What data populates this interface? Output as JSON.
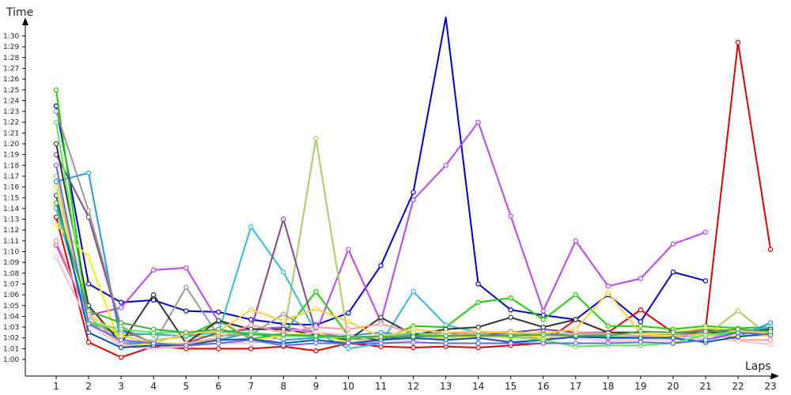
{
  "chart_data": {
    "type": "line",
    "ylabel": "Time",
    "xlabel": "Laps",
    "x": [
      1,
      2,
      3,
      4,
      5,
      6,
      7,
      8,
      9,
      10,
      11,
      12,
      13,
      14,
      15,
      16,
      17,
      18,
      19,
      20,
      21,
      22,
      23
    ],
    "x_tick_labels": [
      "1",
      "2",
      "3",
      "4",
      "5",
      "6",
      "7",
      "8",
      "9",
      "10",
      "11",
      "12",
      "13",
      "14",
      "15",
      "16",
      "17",
      "18",
      "19",
      "20",
      "21",
      "22",
      "23"
    ],
    "y_unit": "seconds",
    "ylim": [
      58,
      92
    ],
    "y_ticks": [
      60,
      61,
      62,
      63,
      64,
      65,
      66,
      67,
      68,
      69,
      70,
      71,
      72,
      73,
      74,
      75,
      76,
      77,
      78,
      79,
      80,
      81,
      82,
      83,
      84,
      85,
      86,
      87,
      88,
      89,
      90
    ],
    "y_tick_labels": [
      "1:00",
      "1:01",
      "1:02",
      "1:03",
      "1:04",
      "1:05",
      "1:06",
      "1:07",
      "1:08",
      "1:09",
      "1:10",
      "1:11",
      "1:12",
      "1:13",
      "1:14",
      "1:15",
      "1:16",
      "1:17",
      "1:18",
      "1:19",
      "1:20",
      "1:21",
      "1:22",
      "1:23",
      "1:24",
      "1:25",
      "1:26",
      "1:27",
      "1:28",
      "1:29",
      "1:30"
    ],
    "grid": false,
    "series": [
      {
        "color": "#0000cc",
        "values": [
          83.5,
          67,
          65.3,
          65.5,
          64.5,
          64.4,
          63.7,
          63.3,
          63.2,
          64.3,
          68.7,
          75.5,
          93,
          67,
          64.6,
          64.1,
          63.7,
          66,
          63.5,
          68.1,
          67.3,
          null,
          null
        ]
      },
      {
        "color": "#dd0000",
        "values": [
          73.2,
          61.6,
          60.2,
          61.2,
          61,
          61,
          61,
          61.2,
          60.8,
          61.5,
          61.2,
          61.1,
          61.2,
          61.1,
          61.3,
          61.5,
          63.7,
          62.5,
          64.6,
          62.5,
          62.8,
          89.4,
          70.2
        ]
      },
      {
        "color": "#bb44ee",
        "values": [
          70.6,
          64.1,
          64.8,
          68.3,
          68.5,
          63.5,
          62.8,
          63,
          62.5,
          70.2,
          63.5,
          74.8,
          78,
          82,
          73.3,
          64.5,
          71,
          66.8,
          67.5,
          70.7,
          71.8,
          null,
          null
        ]
      },
      {
        "color": "#22cc00",
        "values": [
          85,
          63.5,
          62.2,
          62.4,
          62.1,
          63.6,
          61.9,
          62.4,
          66.3,
          62.2,
          61.8,
          63.1,
          63,
          65.3,
          65.7,
          63.7,
          66,
          63.1,
          63.1,
          62.8,
          63.1,
          62.9,
          63
        ]
      },
      {
        "color": "#aacc66",
        "values": [
          77,
          63.5,
          61.5,
          61.8,
          62.1,
          62.2,
          62.5,
          62.1,
          80.5,
          61.9,
          61.8,
          62.2,
          62.2,
          62.4,
          62.3,
          62.2,
          62.1,
          62.1,
          62.1,
          62.2,
          62.2,
          64.5,
          62.1
        ]
      },
      {
        "color": "#2299dd",
        "values": [
          76.5,
          77.3,
          61.5,
          61.5,
          61.5,
          61.8,
          62.5,
          61.8,
          62,
          62.2,
          62.5,
          62.2,
          62.1,
          62.1,
          62.2,
          62.5,
          62.1,
          62.1,
          62.1,
          62.1,
          62.2,
          62.1,
          63.4
        ]
      },
      {
        "color": "#33bbdd",
        "values": [
          74,
          63.5,
          62.5,
          62.3,
          62.2,
          62.5,
          72.3,
          68.1,
          62.5,
          61,
          61.5,
          66.3,
          63.2,
          62.5,
          62.5,
          62.2,
          62.1,
          62.2,
          62.1,
          62.2,
          62.2,
          62.5,
          63
        ]
      },
      {
        "color": "#884488",
        "values": [
          79,
          73.2,
          62.8,
          61.5,
          61.5,
          62.5,
          62.8,
          73,
          62.5,
          62,
          61.8,
          62.3,
          62.5,
          62.2,
          62.5,
          62.8,
          62.5,
          62.5,
          62.5,
          62.5,
          62.8,
          62.5,
          62.3
        ]
      },
      {
        "color": "#999999",
        "values": [
          83,
          73.8,
          63.1,
          61.4,
          66.7,
          62.2,
          62.3,
          64.2,
          62.4,
          62,
          62.2,
          62.3,
          62.5,
          62.4,
          62.6,
          62.3,
          62.4,
          62.3,
          62.2,
          62.3,
          62.4,
          62.5,
          62.6
        ]
      },
      {
        "color": "#333333",
        "values": [
          80,
          65,
          61.5,
          66,
          61.5,
          63.6,
          62.8,
          62.8,
          62.3,
          61.8,
          63.9,
          62.3,
          62.8,
          63,
          63.9,
          63,
          63.7,
          62.5,
          62.5,
          62.5,
          62.5,
          62.5,
          62.8
        ]
      },
      {
        "color": "#eeee00",
        "values": [
          72.5,
          69.5,
          61.2,
          61.5,
          61.5,
          61.8,
          61.8,
          62.2,
          62.5,
          61.5,
          61.5,
          61.8,
          62.1,
          62.1,
          62,
          62.1,
          62.2,
          62.2,
          62.2,
          62.2,
          62.2,
          62.2,
          62.2
        ]
      },
      {
        "color": "#ff9999",
        "values": [
          71,
          64,
          61.5,
          61,
          61.5,
          62,
          63.2,
          62.5,
          63,
          62.8,
          63.3,
          62.5,
          62.2,
          62.5,
          62.5,
          61.8,
          62.5,
          62.4,
          62.2,
          62,
          62.5,
          61.8,
          61.8
        ]
      },
      {
        "color": "#ffbbdd",
        "values": [
          69.5,
          63.3,
          61.2,
          61,
          61.2,
          61.5,
          61.5,
          62,
          62.5,
          62.3,
          61.5,
          61.8,
          62,
          62,
          62.2,
          62.2,
          62,
          61.7,
          61.8,
          61.8,
          62,
          61.7,
          61.4
        ]
      },
      {
        "color": "#0055aa",
        "values": [
          75.2,
          62.5,
          61.1,
          61.3,
          61.3,
          61.8,
          61.9,
          61.5,
          61.8,
          61.5,
          61.8,
          62,
          61.8,
          62,
          61.6,
          61.8,
          62.1,
          62,
          62,
          62,
          61.6,
          62.1,
          62.4
        ]
      },
      {
        "color": "#55ee55",
        "values": [
          82,
          63.5,
          62.8,
          62.5,
          62.5,
          62.5,
          62.5,
          62.2,
          62.1,
          62,
          62.1,
          62.5,
          62.1,
          62.3,
          62.1,
          61.8,
          61.2,
          61.3,
          61.3,
          61.5,
          62.3,
          62.6,
          62.6
        ]
      },
      {
        "color": "#ffcc44",
        "values": [
          76,
          64.2,
          62.2,
          61.5,
          62.4,
          62.6,
          64.6,
          63.6,
          64.7,
          63.5,
          62.1,
          62.8,
          62.5,
          62.6,
          62.5,
          62.4,
          62.8,
          66.2,
          62.4,
          62.5,
          62.9,
          62.6,
          62.5
        ]
      },
      {
        "color": "#6666ff",
        "values": [
          78,
          63.3,
          61.8,
          61.5,
          61.3,
          61.5,
          61.8,
          61.3,
          61.5,
          61.5,
          61.5,
          61.6,
          61.5,
          61.5,
          61.5,
          61.5,
          61.5,
          61.5,
          61.6,
          61.5,
          61.8,
          62.5,
          62.3
        ]
      },
      {
        "color": "#44aa44",
        "values": [
          74.5,
          64.5,
          63.4,
          62.8,
          62.5,
          62.8,
          62.3,
          62.3,
          62.2,
          62.1,
          62.1,
          62.1,
          62.2,
          62.2,
          62.2,
          62.3,
          62.2,
          62.2,
          62.6,
          62.5,
          62.6,
          62.8,
          62.6
        ]
      }
    ]
  }
}
